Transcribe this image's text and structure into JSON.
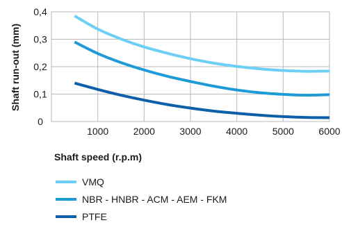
{
  "chart_data": {
    "type": "line",
    "title": "",
    "xlabel": "Shaft speed  (r.p.m)",
    "ylabel": "Shaft run-out  (mm)",
    "xlim": [
      0,
      6000
    ],
    "ylim": [
      0,
      0.4
    ],
    "xticks": [
      "1000",
      "2000",
      "3000",
      "4000",
      "5000",
      "6000"
    ],
    "xtick_values": [
      1000,
      2000,
      3000,
      4000,
      5000,
      6000
    ],
    "yticks": [
      "0",
      "0,1",
      "0,2",
      "0,3",
      "0,4"
    ],
    "ytick_values": [
      0,
      0.1,
      0.2,
      0.3,
      0.4
    ],
    "grid": true,
    "legend_position": "bottom-left",
    "x": [
      500,
      1000,
      1500,
      2000,
      2500,
      3000,
      3500,
      4000,
      4500,
      5000,
      5500,
      6000
    ],
    "series": [
      {
        "name": "VMQ",
        "color": "#6ecff6",
        "values": [
          0.385,
          0.337,
          0.301,
          0.272,
          0.249,
          0.229,
          0.213,
          0.201,
          0.192,
          0.186,
          0.183,
          0.184
        ]
      },
      {
        "name": "NBR - HNBR - ACM - AEM - FKM",
        "color": "#1e9ad6",
        "values": [
          0.29,
          0.248,
          0.215,
          0.188,
          0.165,
          0.146,
          0.129,
          0.115,
          0.105,
          0.099,
          0.096,
          0.098
        ]
      },
      {
        "name": "PTFE",
        "color": "#0c5fa8",
        "values": [
          0.14,
          0.117,
          0.096,
          0.078,
          0.062,
          0.049,
          0.038,
          0.03,
          0.023,
          0.018,
          0.015,
          0.014
        ]
      }
    ]
  }
}
